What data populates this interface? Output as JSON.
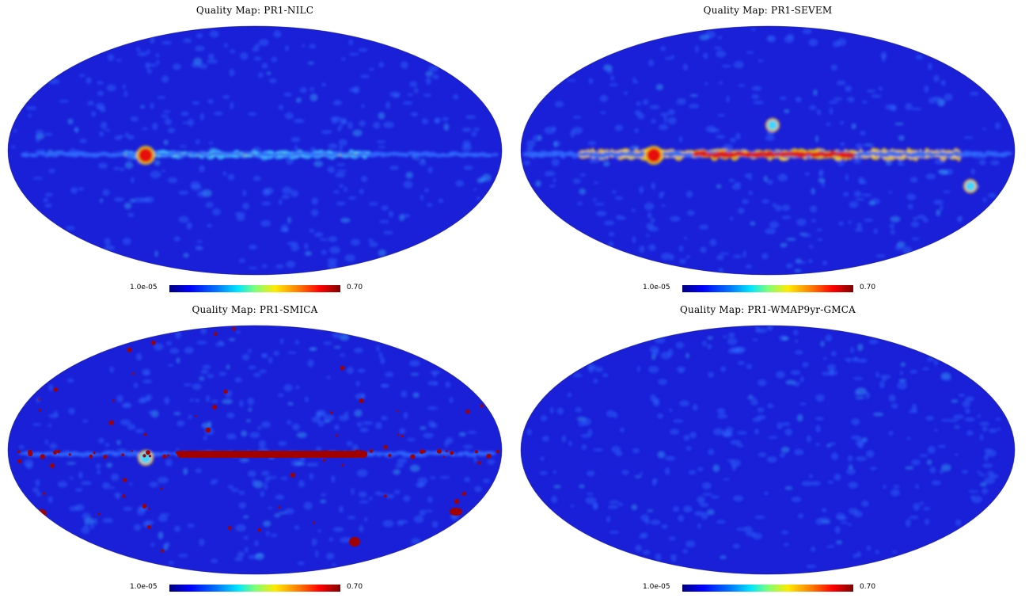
{
  "panels": [
    {
      "title": "Quality Map: PR1-NILC",
      "colorbar": {
        "min": "1.0e-05",
        "max": "0.70"
      }
    },
    {
      "title": "Quality Map: PR1-SEVEM",
      "colorbar": {
        "min": "1.0e-05",
        "max": "0.70"
      }
    },
    {
      "title": "Quality Map: PR1-SMICA",
      "colorbar": {
        "min": "1.0e-05",
        "max": "0.70"
      }
    },
    {
      "title": "Quality Map: PR1-WMAP9yr-GMCA",
      "colorbar": {
        "min": "1.0e-05",
        "max": "0.70"
      }
    }
  ],
  "colors": {
    "background_blue": "#1a1fd8",
    "mottle_light": "#2f6cff",
    "plane_cyan": "#3fd6ff",
    "plane_yellow": "#ffd400",
    "plane_red": "#e81010",
    "mask_red": "#a00000"
  }
}
